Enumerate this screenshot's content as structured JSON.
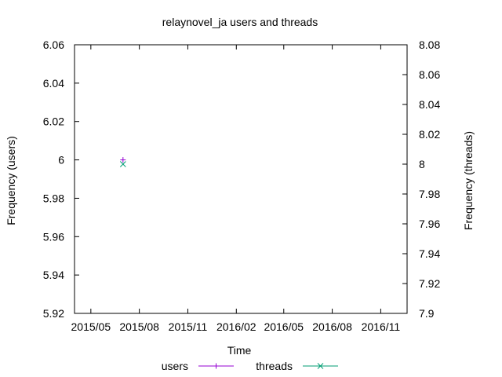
{
  "chart_data": {
    "type": "scatter",
    "title": "relaynovel_ja users and threads",
    "xlabel": "Time",
    "ylabel": "Frequency (users)",
    "y2label": "Frequency (threads)",
    "x_tick_labels": [
      "2015/05",
      "2015/08",
      "2015/11",
      "2016/02",
      "2016/05",
      "2016/08",
      "2016/11"
    ],
    "y_ticks": [
      "5.92",
      "5.94",
      "5.96",
      "5.98",
      "6",
      "6.02",
      "6.04",
      "6.06"
    ],
    "y2_ticks": [
      "7.9",
      "7.92",
      "7.94",
      "7.96",
      "7.98",
      "8",
      "8.02",
      "8.04",
      "8.06",
      "8.08"
    ],
    "ylim": [
      5.92,
      6.06
    ],
    "y2lim": [
      7.9,
      8.08
    ],
    "xlim": [
      "2015-03-31",
      "2016-12-21"
    ],
    "legend_position": "bottom",
    "series": [
      {
        "name": "users",
        "axis": "y",
        "color": "#9400d3",
        "marker": "+",
        "points": [
          {
            "x": "2015-07-01",
            "y": 6
          }
        ]
      },
      {
        "name": "threads",
        "axis": "y2",
        "color": "#009e73",
        "marker": "x",
        "points": [
          {
            "x": "2015-07-01",
            "y": 8
          }
        ]
      }
    ]
  }
}
